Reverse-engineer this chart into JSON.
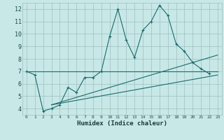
{
  "xlabel": "Humidex (Indice chaleur)",
  "background_color": "#c8e8e8",
  "grid_color": "#9fbfbf",
  "line_color": "#1a6b6b",
  "xlim": [
    -0.5,
    23.5
  ],
  "ylim": [
    3.5,
    12.5
  ],
  "yticks": [
    4,
    5,
    6,
    7,
    8,
    9,
    10,
    11,
    12
  ],
  "xticks": [
    0,
    1,
    2,
    3,
    4,
    5,
    6,
    7,
    8,
    9,
    10,
    11,
    12,
    13,
    14,
    15,
    16,
    17,
    18,
    19,
    20,
    21,
    22,
    23
  ],
  "main_line_x": [
    0,
    1,
    2,
    3,
    4,
    5,
    6,
    7,
    8,
    9,
    10,
    11,
    12,
    13,
    14,
    15,
    16,
    17,
    18,
    19,
    20,
    21,
    22
  ],
  "main_line_y": [
    7.0,
    6.7,
    3.8,
    4.0,
    4.3,
    5.7,
    5.3,
    6.5,
    6.5,
    7.0,
    9.8,
    12.0,
    9.5,
    8.1,
    10.3,
    11.0,
    12.3,
    11.5,
    9.2,
    8.6,
    7.7,
    7.2,
    6.8
  ],
  "line2_x": [
    0,
    23
  ],
  "line2_y": [
    7.0,
    7.0
  ],
  "line3_x": [
    3,
    23
  ],
  "line3_y": [
    4.3,
    8.3
  ],
  "line4_x": [
    3,
    23
  ],
  "line4_y": [
    4.3,
    6.7
  ]
}
